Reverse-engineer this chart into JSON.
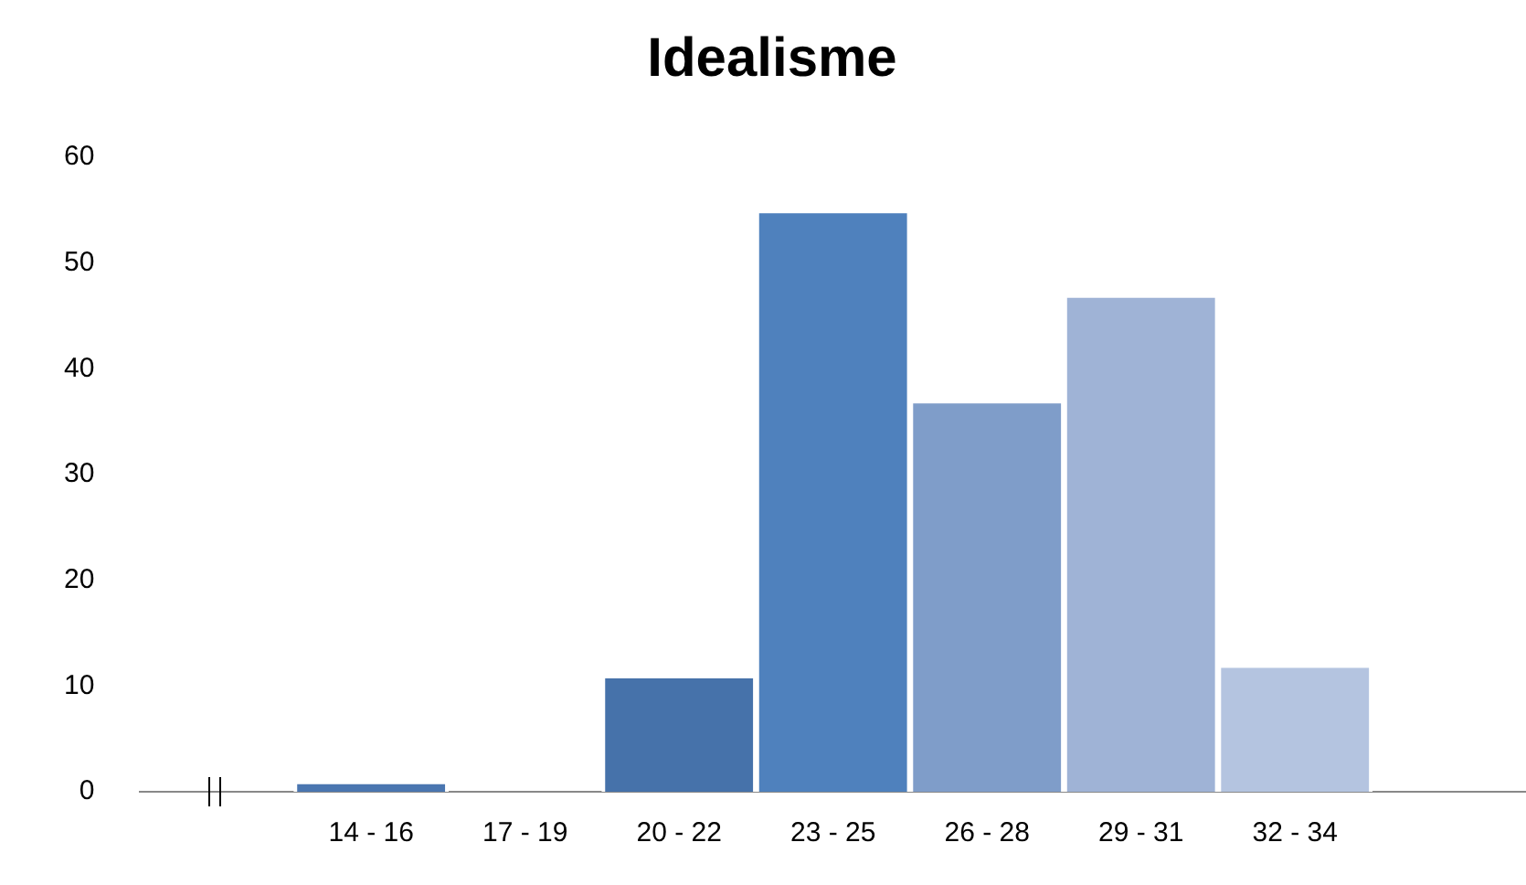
{
  "chart_data": {
    "type": "bar",
    "title": "Idealisme",
    "categories": [
      null,
      "14 - 16",
      "17 - 19",
      "20 - 22",
      "23 - 25",
      "26 - 28",
      "29 - 31",
      "32 - 34",
      null
    ],
    "values": [
      null,
      1,
      0,
      11,
      55,
      37,
      47,
      12,
      null
    ],
    "colors": [
      "#4f81bd",
      "#4a76b0",
      "#4a76b0",
      "#4672aa",
      "#4f81bd",
      "#7f9dc9",
      "#9fb3d6",
      "#b4c4e0",
      "#b4c4e0"
    ],
    "ylim": [
      0,
      60
    ],
    "yticks": [
      0,
      10,
      20,
      30,
      40,
      50,
      60
    ],
    "grid": false,
    "legend": false
  }
}
